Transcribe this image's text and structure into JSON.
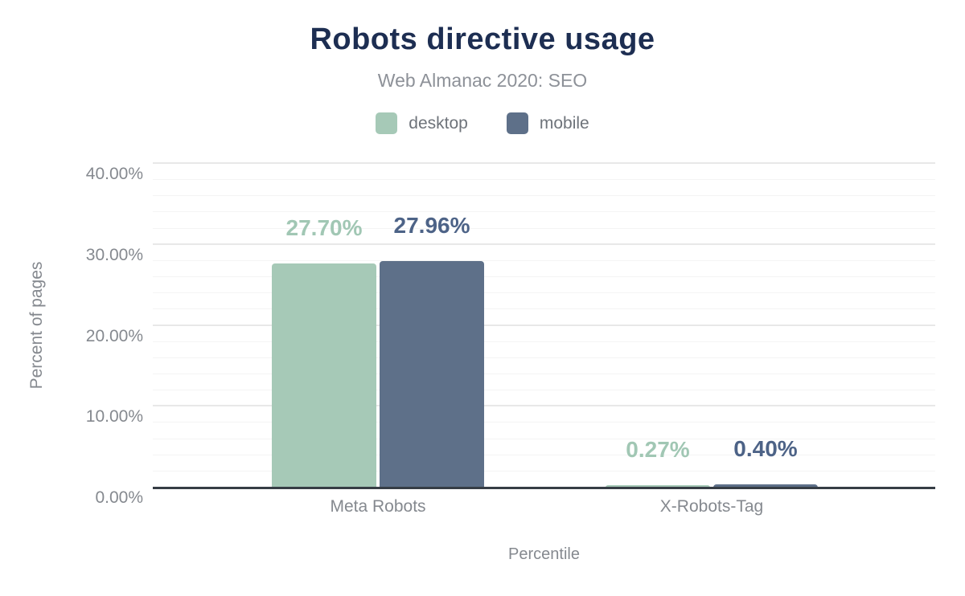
{
  "chart_data": {
    "type": "bar",
    "title": "Robots directive usage",
    "subtitle": "Web Almanac 2020: SEO",
    "categories": [
      "Meta Robots",
      "X-Robots-Tag"
    ],
    "series": [
      {
        "name": "desktop",
        "color": "#a6c9b7",
        "label_color": "#a1c7b4",
        "values": [
          27.7,
          0.27
        ],
        "labels": [
          "27.70%",
          "0.27%"
        ]
      },
      {
        "name": "mobile",
        "color": "#5e7089",
        "label_color": "#4d6387",
        "values": [
          27.96,
          0.4
        ],
        "labels": [
          "27.96%",
          "0.40%"
        ]
      }
    ],
    "xlabel": "Percentile",
    "ylabel": "Percent of pages",
    "ylim": [
      0,
      40
    ],
    "yticks": [
      {
        "value": 0,
        "label": "0.00%"
      },
      {
        "value": 10,
        "label": "10.00%"
      },
      {
        "value": 20,
        "label": "20.00%"
      },
      {
        "value": 30,
        "label": "30.00%"
      },
      {
        "value": 40,
        "label": "40.00%"
      }
    ],
    "grid": {
      "minor_step": 2,
      "major_step": 10,
      "enabled": true
    },
    "legend_position": "top",
    "colors": {
      "title_text": "#1d2e52",
      "subtitle_text": "#8d9198",
      "legend_text": "#6e737a",
      "axis_text": "#85898f",
      "axis_line": "#363d45"
    }
  }
}
